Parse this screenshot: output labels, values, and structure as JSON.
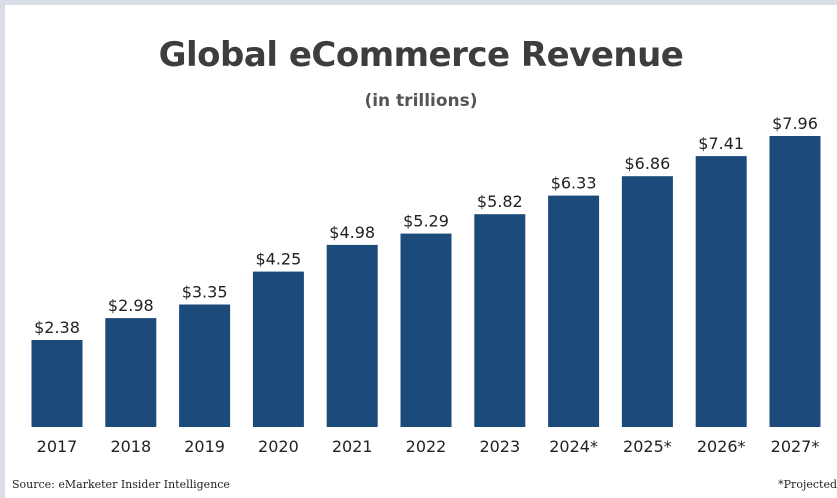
{
  "chart_data": {
    "type": "bar",
    "title": "Global eCommerce Revenue",
    "subtitle": "(in trillions)",
    "categories": [
      "2017",
      "2018",
      "2019",
      "2020",
      "2021",
      "2022",
      "2023",
      "2024*",
      "2025*",
      "2026*",
      "2027*"
    ],
    "values": [
      2.38,
      2.98,
      3.35,
      4.25,
      4.98,
      5.29,
      5.82,
      6.33,
      6.86,
      7.41,
      7.96
    ],
    "data_labels": [
      "$2.38",
      "$2.98",
      "$3.35",
      "$4.25",
      "$4.98",
      "$5.29",
      "$5.82",
      "$6.33",
      "$6.86",
      "$7.41",
      "$7.96"
    ],
    "bar_color": "#1c4a7a",
    "ylim": [
      0,
      7.96
    ],
    "grid": false,
    "legend": "none"
  },
  "footer": {
    "source": "Source: eMarketer Insider Intelligence",
    "note": "*Projected"
  }
}
